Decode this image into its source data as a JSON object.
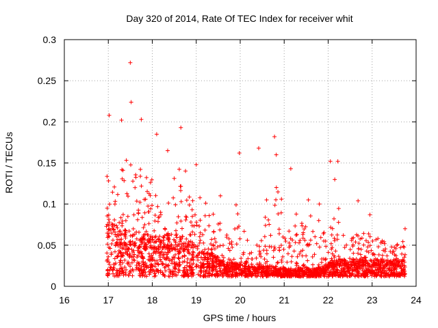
{
  "chart_data": {
    "type": "scatter",
    "title": "Day 320 of 2014, Rate Of TEC Index for receiver whit",
    "xlabel": "GPS time / hours",
    "ylabel": "ROTI / TECUs",
    "xlim": [
      16,
      24
    ],
    "ylim": [
      0,
      0.3
    ],
    "xticks": [
      16,
      17,
      18,
      19,
      20,
      21,
      22,
      23,
      24
    ],
    "yticks": [
      0,
      0.05,
      0.1,
      0.15,
      0.2,
      0.25,
      0.3
    ],
    "ytick_labels": [
      "0",
      "0.05",
      "0.1",
      "0.15",
      "0.2",
      "0.25",
      "0.3"
    ],
    "grid": true,
    "marker": "plus",
    "color": "#ff0000",
    "point_count": 2400,
    "highlight_points": [
      [
        17.5,
        0.272
      ],
      [
        17.52,
        0.224
      ],
      [
        17.02,
        0.208
      ],
      [
        17.3,
        0.202
      ],
      [
        17.75,
        0.203
      ],
      [
        18.1,
        0.185
      ],
      [
        18.35,
        0.165
      ],
      [
        18.65,
        0.193
      ],
      [
        19.0,
        0.148
      ],
      [
        19.98,
        0.162
      ],
      [
        20.42,
        0.168
      ],
      [
        20.78,
        0.182
      ],
      [
        20.82,
        0.16
      ],
      [
        21.15,
        0.143
      ],
      [
        22.05,
        0.152
      ],
      [
        22.22,
        0.152
      ],
      [
        22.15,
        0.13
      ],
      [
        22.68,
        0.104
      ],
      [
        22.95,
        0.087
      ],
      [
        23.75,
        0.07
      ],
      [
        21.55,
        0.105
      ],
      [
        21.8,
        0.1
      ],
      [
        20.6,
        0.105
      ],
      [
        19.55,
        0.11
      ]
    ],
    "envelope": [
      [
        16.95,
        0.06,
        0.14
      ],
      [
        17.2,
        0.05,
        0.14
      ],
      [
        17.5,
        0.05,
        0.16
      ],
      [
        17.8,
        0.045,
        0.14
      ],
      [
        18.1,
        0.045,
        0.14
      ],
      [
        18.4,
        0.045,
        0.13
      ],
      [
        18.7,
        0.045,
        0.15
      ],
      [
        19.0,
        0.035,
        0.12
      ],
      [
        19.3,
        0.03,
        0.1
      ],
      [
        19.6,
        0.025,
        0.08
      ],
      [
        19.9,
        0.022,
        0.1
      ],
      [
        20.2,
        0.02,
        0.06
      ],
      [
        20.5,
        0.02,
        0.07
      ],
      [
        20.8,
        0.02,
        0.13
      ],
      [
        21.1,
        0.018,
        0.11
      ],
      [
        21.4,
        0.018,
        0.08
      ],
      [
        21.7,
        0.018,
        0.09
      ],
      [
        22.0,
        0.022,
        0.06
      ],
      [
        22.2,
        0.025,
        0.11
      ],
      [
        22.5,
        0.025,
        0.06
      ],
      [
        22.8,
        0.025,
        0.07
      ],
      [
        23.1,
        0.025,
        0.06
      ],
      [
        23.4,
        0.025,
        0.05
      ],
      [
        23.75,
        0.025,
        0.06
      ]
    ]
  }
}
